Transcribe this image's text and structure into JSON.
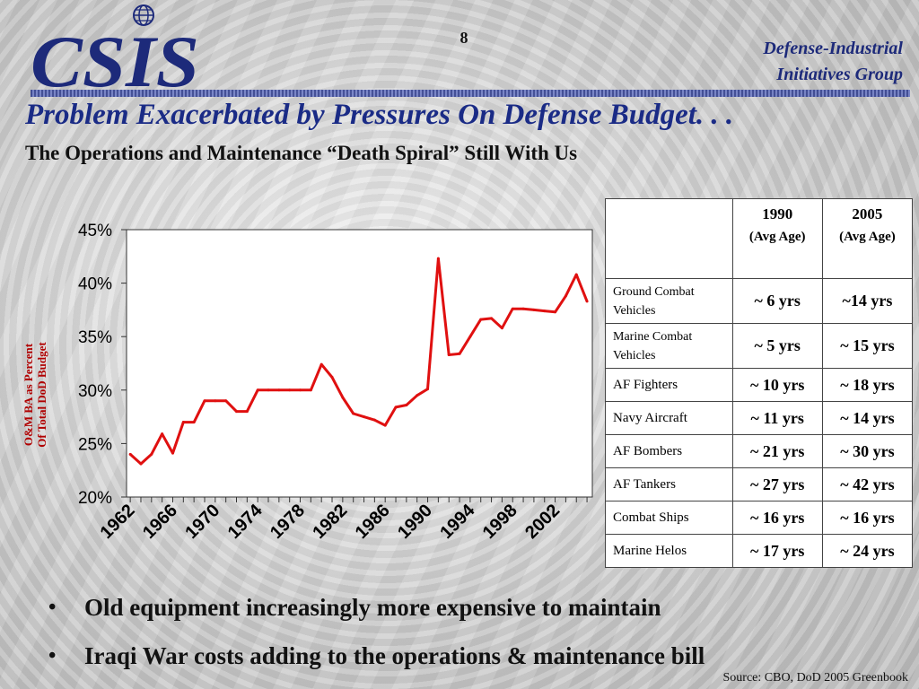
{
  "header": {
    "logo_text": "CSIS",
    "page_number": "8",
    "group_line1": "Defense-Industrial",
    "group_line2": "Initiatives Group"
  },
  "title": "Problem Exacerbated by Pressures On Defense Budget. . .",
  "subtitle": "The Operations and Maintenance “Death Spiral” Still With Us",
  "chart_data": {
    "type": "line",
    "title": "",
    "ylabel_line1": "O&M BA as Percent",
    "ylabel_line2": "Of Total DoD Budget",
    "xlabel": "",
    "ylim": [
      20,
      45
    ],
    "yticks": [
      "20%",
      "25%",
      "30%",
      "35%",
      "40%",
      "45%"
    ],
    "xtick_labels": [
      "1962",
      "1966",
      "1970",
      "1974",
      "1978",
      "1982",
      "1986",
      "1990",
      "1994",
      "1998",
      "2002"
    ],
    "grid": false,
    "series_color": "#e01010",
    "x": [
      1962,
      1963,
      1964,
      1965,
      1966,
      1967,
      1968,
      1969,
      1970,
      1971,
      1972,
      1973,
      1974,
      1975,
      1976,
      1977,
      1978,
      1979,
      1980,
      1981,
      1982,
      1983,
      1984,
      1985,
      1986,
      1987,
      1988,
      1989,
      1990,
      1991,
      1992,
      1993,
      1994,
      1995,
      1996,
      1997,
      1998,
      1999,
      2000,
      2001,
      2002,
      2003,
      2004,
      2005
    ],
    "values": [
      24.0,
      23.1,
      24.0,
      25.9,
      24.1,
      27.0,
      27.0,
      29.0,
      29.0,
      29.0,
      28.0,
      28.0,
      30.0,
      30.0,
      30.0,
      30.0,
      30.0,
      30.0,
      32.4,
      31.2,
      29.3,
      27.8,
      27.5,
      27.2,
      26.7,
      28.4,
      28.6,
      29.5,
      30.1,
      42.3,
      33.3,
      33.4,
      35.0,
      36.6,
      36.7,
      35.8,
      37.6,
      37.6,
      37.5,
      37.4,
      37.3,
      38.8,
      40.8,
      38.3
    ]
  },
  "table": {
    "header_1990": "1990",
    "header_2005": "2005",
    "header_sub": "(Avg Age)",
    "rows": [
      {
        "label": "Ground Combat Vehicles",
        "v1990": "~ 6 yrs",
        "v2005": "~14 yrs"
      },
      {
        "label": "Marine Combat Vehicles",
        "v1990": "~ 5 yrs",
        "v2005": "~ 15 yrs"
      },
      {
        "label": "AF Fighters",
        "v1990": "~ 10 yrs",
        "v2005": "~ 18 yrs"
      },
      {
        "label": "Navy Aircraft",
        "v1990": "~ 11 yrs",
        "v2005": "~ 14 yrs"
      },
      {
        "label": "AF Bombers",
        "v1990": "~ 21 yrs",
        "v2005": "~ 30 yrs"
      },
      {
        "label": "AF Tankers",
        "v1990": "~ 27 yrs",
        "v2005": "~ 42 yrs"
      },
      {
        "label": "Combat Ships",
        "v1990": "~ 16 yrs",
        "v2005": "~ 16 yrs"
      },
      {
        "label": "Marine Helos",
        "v1990": "~ 17 yrs",
        "v2005": "~ 24 yrs"
      }
    ]
  },
  "bullets": [
    "Old equipment increasingly more expensive to maintain",
    "Iraqi War costs adding to the operations & maintenance bill"
  ],
  "bullet_glyph": "•",
  "source": "Source: CBO, DoD 2005 Greenbook"
}
